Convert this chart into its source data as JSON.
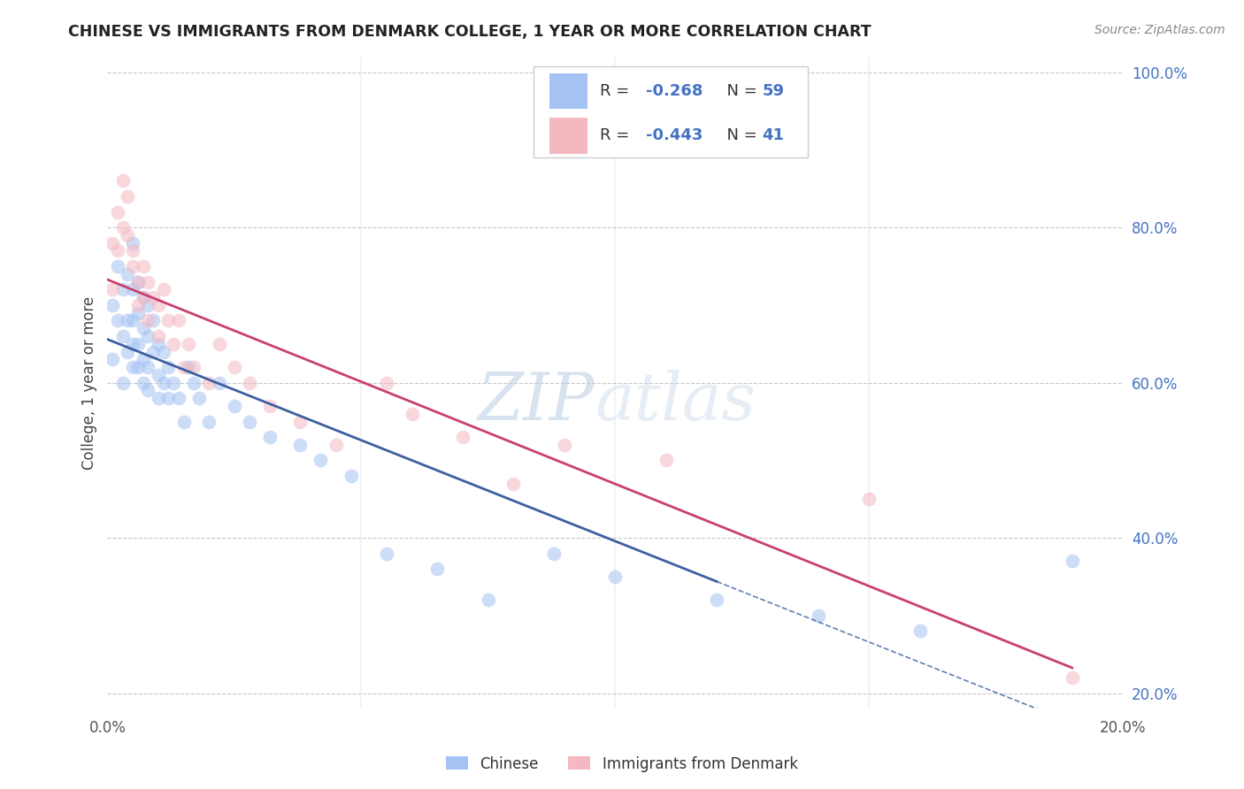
{
  "title": "CHINESE VS IMMIGRANTS FROM DENMARK COLLEGE, 1 YEAR OR MORE CORRELATION CHART",
  "source": "Source: ZipAtlas.com",
  "ylabel": "College, 1 year or more",
  "xlim": [
    0.0,
    0.2
  ],
  "ylim": [
    0.18,
    1.02
  ],
  "right_yticks": [
    0.2,
    0.4,
    0.6,
    0.8,
    1.0
  ],
  "right_yticklabels": [
    "20.0%",
    "40.0%",
    "60.0%",
    "80.0%",
    "100.0%"
  ],
  "xticks": [
    0.0,
    0.05,
    0.1,
    0.15,
    0.2
  ],
  "xticklabels": [
    "0.0%",
    "",
    "",
    "",
    "20.0%"
  ],
  "blue_color": "#a4c2f4",
  "pink_color": "#f4b8c1",
  "trend_blue": "#3d5fa0",
  "trend_pink": "#c94070",
  "watermark_zip": "ZIP",
  "watermark_atlas": "atlas",
  "chinese_x": [
    0.001,
    0.001,
    0.002,
    0.002,
    0.003,
    0.003,
    0.003,
    0.004,
    0.004,
    0.004,
    0.005,
    0.005,
    0.005,
    0.005,
    0.005,
    0.006,
    0.006,
    0.006,
    0.006,
    0.007,
    0.007,
    0.007,
    0.007,
    0.008,
    0.008,
    0.008,
    0.008,
    0.009,
    0.009,
    0.01,
    0.01,
    0.01,
    0.011,
    0.011,
    0.012,
    0.012,
    0.013,
    0.014,
    0.015,
    0.016,
    0.017,
    0.018,
    0.02,
    0.022,
    0.025,
    0.028,
    0.032,
    0.038,
    0.042,
    0.048,
    0.055,
    0.065,
    0.075,
    0.088,
    0.1,
    0.12,
    0.14,
    0.16,
    0.19
  ],
  "chinese_y": [
    0.7,
    0.63,
    0.75,
    0.68,
    0.72,
    0.66,
    0.6,
    0.74,
    0.68,
    0.64,
    0.78,
    0.72,
    0.68,
    0.65,
    0.62,
    0.73,
    0.69,
    0.65,
    0.62,
    0.71,
    0.67,
    0.63,
    0.6,
    0.7,
    0.66,
    0.62,
    0.59,
    0.68,
    0.64,
    0.65,
    0.61,
    0.58,
    0.64,
    0.6,
    0.62,
    0.58,
    0.6,
    0.58,
    0.55,
    0.62,
    0.6,
    0.58,
    0.55,
    0.6,
    0.57,
    0.55,
    0.53,
    0.52,
    0.5,
    0.48,
    0.38,
    0.36,
    0.32,
    0.38,
    0.35,
    0.32,
    0.3,
    0.28,
    0.37
  ],
  "denmark_x": [
    0.001,
    0.001,
    0.002,
    0.002,
    0.003,
    0.003,
    0.004,
    0.004,
    0.005,
    0.005,
    0.006,
    0.006,
    0.007,
    0.007,
    0.008,
    0.008,
    0.009,
    0.01,
    0.01,
    0.011,
    0.012,
    0.013,
    0.014,
    0.015,
    0.016,
    0.017,
    0.02,
    0.022,
    0.025,
    0.028,
    0.032,
    0.038,
    0.045,
    0.055,
    0.06,
    0.07,
    0.08,
    0.09,
    0.11,
    0.15,
    0.19
  ],
  "denmark_y": [
    0.78,
    0.72,
    0.82,
    0.77,
    0.86,
    0.8,
    0.84,
    0.79,
    0.77,
    0.75,
    0.73,
    0.7,
    0.75,
    0.71,
    0.73,
    0.68,
    0.71,
    0.7,
    0.66,
    0.72,
    0.68,
    0.65,
    0.68,
    0.62,
    0.65,
    0.62,
    0.6,
    0.65,
    0.62,
    0.6,
    0.57,
    0.55,
    0.52,
    0.6,
    0.56,
    0.53,
    0.47,
    0.52,
    0.5,
    0.45,
    0.22
  ],
  "background_color": "#ffffff",
  "grid_color": "#c8c8c8"
}
